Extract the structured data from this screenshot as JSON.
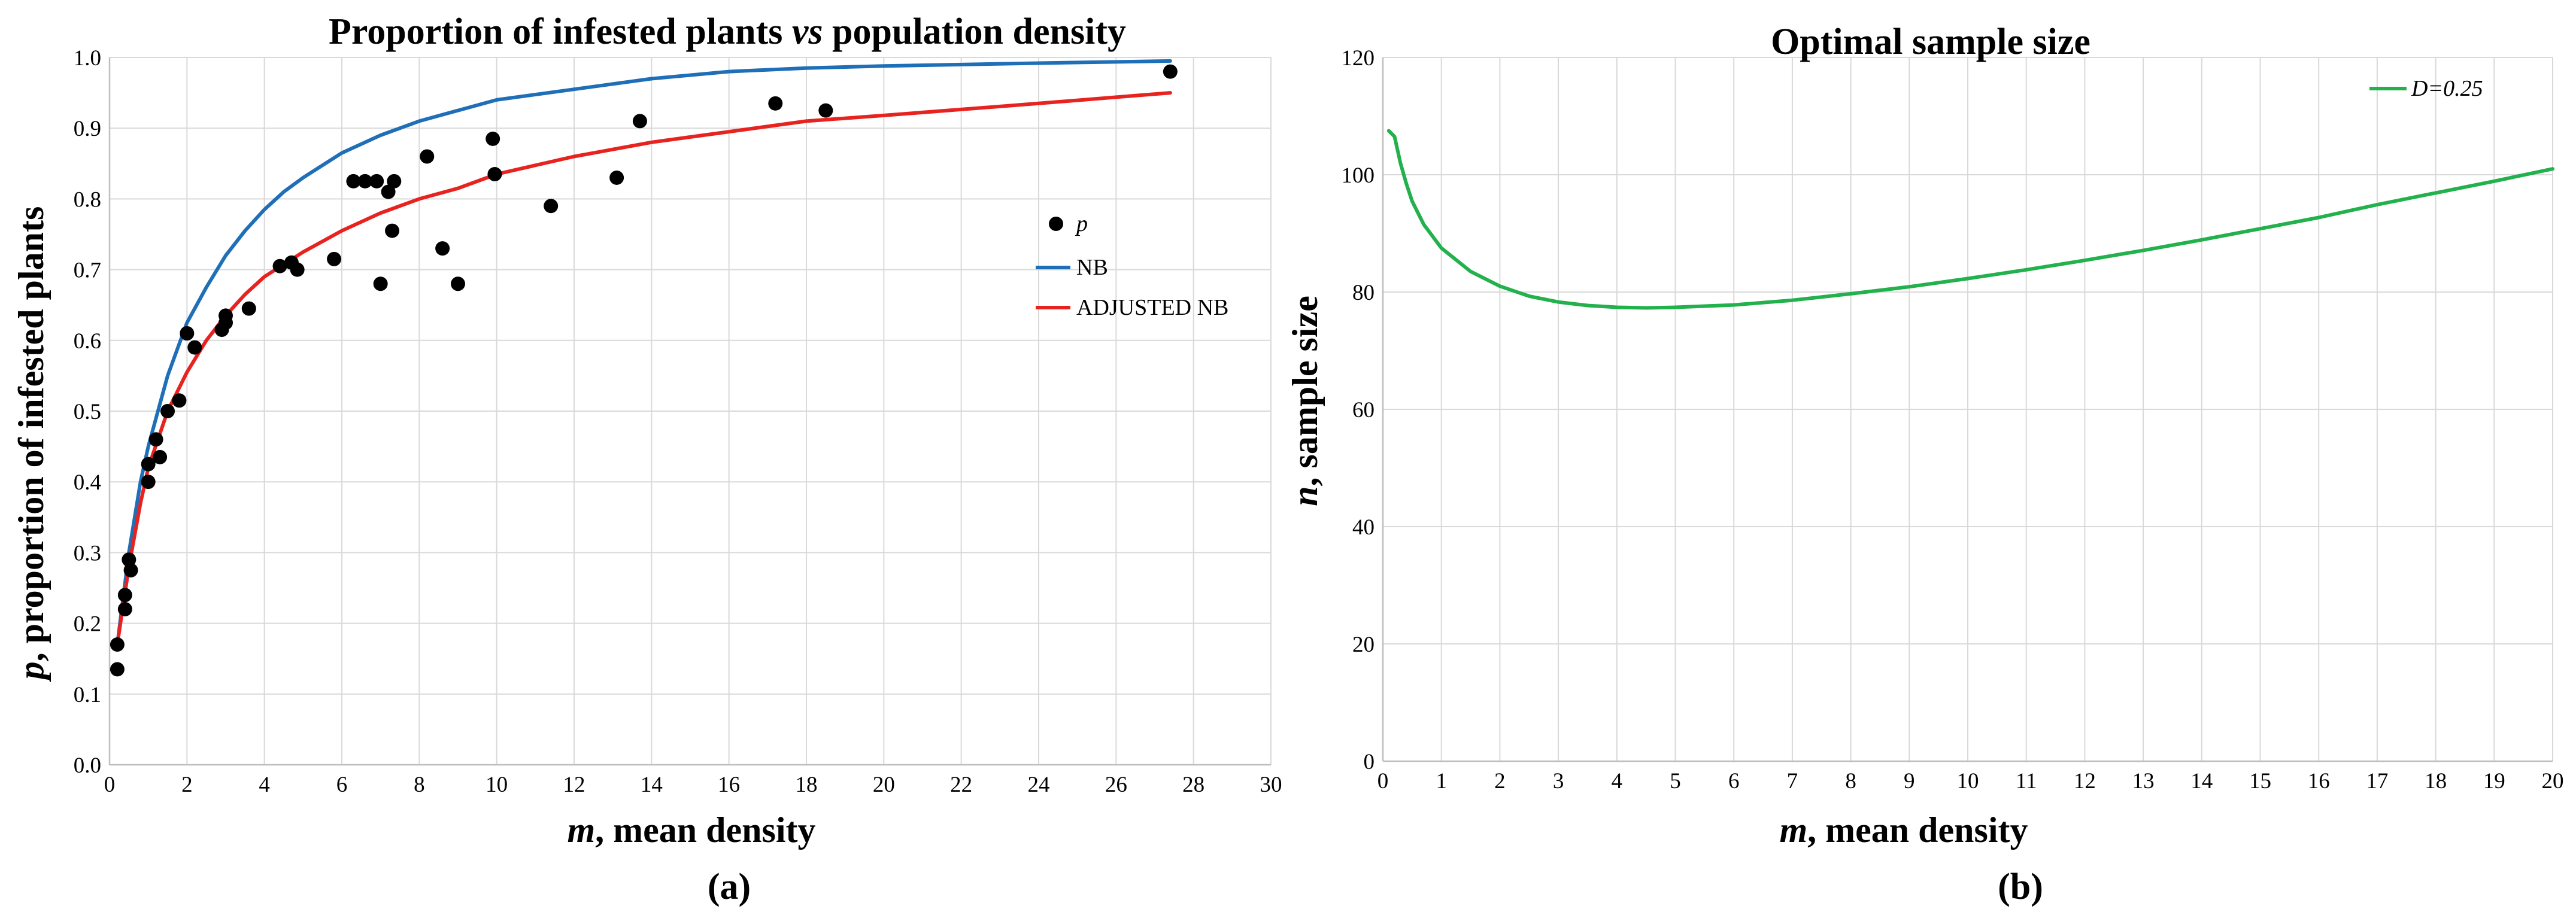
{
  "chart_data": [
    {
      "type": "scatter",
      "panel_label": "(a)",
      "title_parts": [
        "Proportion of infested plants ",
        "vs",
        " population density"
      ],
      "xlabel_parts": [
        "m",
        ", mean density"
      ],
      "ylabel_parts": [
        "p",
        ", proportion of infested plants"
      ],
      "xlim": [
        0,
        30
      ],
      "ylim": [
        0.0,
        1.0
      ],
      "x_ticks": [
        0,
        2,
        4,
        6,
        8,
        10,
        12,
        14,
        16,
        18,
        20,
        22,
        24,
        26,
        28,
        30
      ],
      "y_ticks": [
        "0.0",
        "0.1",
        "0.2",
        "0.3",
        "0.4",
        "0.5",
        "0.6",
        "0.7",
        "0.8",
        "0.9",
        "1.0"
      ],
      "grid": true,
      "legend_position": "right",
      "series": [
        {
          "name": "p",
          "kind": "points",
          "color": "#000000",
          "points": [
            [
              0.2,
              0.135
            ],
            [
              0.2,
              0.17
            ],
            [
              0.4,
              0.24
            ],
            [
              0.4,
              0.22
            ],
            [
              0.5,
              0.29
            ],
            [
              0.55,
              0.275
            ],
            [
              1.0,
              0.425
            ],
            [
              1.0,
              0.4
            ],
            [
              1.2,
              0.46
            ],
            [
              1.3,
              0.435
            ],
            [
              1.5,
              0.5
            ],
            [
              1.8,
              0.515
            ],
            [
              2.0,
              0.61
            ],
            [
              2.2,
              0.59
            ],
            [
              2.9,
              0.615
            ],
            [
              3.0,
              0.635
            ],
            [
              3.0,
              0.625
            ],
            [
              3.6,
              0.645
            ],
            [
              4.4,
              0.705
            ],
            [
              4.7,
              0.71
            ],
            [
              4.85,
              0.7
            ],
            [
              5.8,
              0.715
            ],
            [
              6.3,
              0.825
            ],
            [
              6.6,
              0.825
            ],
            [
              6.9,
              0.825
            ],
            [
              7.0,
              0.68
            ],
            [
              7.2,
              0.81
            ],
            [
              7.3,
              0.755
            ],
            [
              7.35,
              0.825
            ],
            [
              8.2,
              0.86
            ],
            [
              8.6,
              0.73
            ],
            [
              9.0,
              0.68
            ],
            [
              9.9,
              0.885
            ],
            [
              9.95,
              0.835
            ],
            [
              11.4,
              0.79
            ],
            [
              13.1,
              0.83
            ],
            [
              13.7,
              0.91
            ],
            [
              17.2,
              0.935
            ],
            [
              18.5,
              0.925
            ],
            [
              27.4,
              0.98
            ]
          ]
        },
        {
          "name": "NB",
          "kind": "line",
          "color": "#1f6fb8",
          "points": [
            [
              0.2,
              0.17
            ],
            [
              0.5,
              0.3
            ],
            [
              0.8,
              0.4
            ],
            [
              1.0,
              0.45
            ],
            [
              1.5,
              0.55
            ],
            [
              2.0,
              0.625
            ],
            [
              2.5,
              0.675
            ],
            [
              3.0,
              0.72
            ],
            [
              3.5,
              0.755
            ],
            [
              4.0,
              0.785
            ],
            [
              4.5,
              0.81
            ],
            [
              5.0,
              0.83
            ],
            [
              6.0,
              0.865
            ],
            [
              7.0,
              0.89
            ],
            [
              8.0,
              0.91
            ],
            [
              9.0,
              0.925
            ],
            [
              10.0,
              0.94
            ],
            [
              12.0,
              0.955
            ],
            [
              14.0,
              0.97
            ],
            [
              16.0,
              0.98
            ],
            [
              18.0,
              0.985
            ],
            [
              20.0,
              0.988
            ],
            [
              24.0,
              0.992
            ],
            [
              27.4,
              0.995
            ]
          ]
        },
        {
          "name": "ADJUSTED NB",
          "kind": "line",
          "color": "#e8231f",
          "points": [
            [
              0.2,
              0.17
            ],
            [
              0.5,
              0.28
            ],
            [
              0.8,
              0.37
            ],
            [
              1.0,
              0.42
            ],
            [
              1.5,
              0.5
            ],
            [
              2.0,
              0.555
            ],
            [
              2.5,
              0.6
            ],
            [
              3.0,
              0.635
            ],
            [
              3.5,
              0.665
            ],
            [
              4.0,
              0.69
            ],
            [
              5.0,
              0.725
            ],
            [
              6.0,
              0.755
            ],
            [
              7.0,
              0.78
            ],
            [
              8.0,
              0.8
            ],
            [
              9.0,
              0.815
            ],
            [
              10.0,
              0.835
            ],
            [
              12.0,
              0.86
            ],
            [
              14.0,
              0.88
            ],
            [
              16.0,
              0.895
            ],
            [
              18.0,
              0.91
            ],
            [
              20.0,
              0.918
            ],
            [
              24.0,
              0.935
            ],
            [
              27.4,
              0.95
            ]
          ]
        }
      ]
    },
    {
      "type": "line",
      "panel_label": "(b)",
      "title": "Optimal sample size",
      "xlabel_parts": [
        "m",
        ", mean density"
      ],
      "ylabel_parts": [
        "n",
        ", sample size"
      ],
      "xlim": [
        0,
        20
      ],
      "ylim": [
        0,
        120
      ],
      "x_ticks": [
        0,
        1,
        2,
        3,
        4,
        5,
        6,
        7,
        8,
        9,
        10,
        11,
        12,
        13,
        14,
        15,
        16,
        17,
        18,
        19,
        20
      ],
      "y_ticks": [
        0,
        20,
        40,
        60,
        80,
        100,
        120
      ],
      "grid": true,
      "legend_position": "top-right",
      "series": [
        {
          "name": "D=0.25",
          "color": "#22b14c",
          "points": [
            [
              0.1,
              107.5
            ],
            [
              0.2,
              106.5
            ],
            [
              0.3,
              102
            ],
            [
              0.4,
              98.5
            ],
            [
              0.5,
              95.5
            ],
            [
              0.7,
              91.5
            ],
            [
              1.0,
              87.5
            ],
            [
              1.5,
              83.5
            ],
            [
              2.0,
              81
            ],
            [
              2.5,
              79.3
            ],
            [
              3.0,
              78.3
            ],
            [
              3.5,
              77.7
            ],
            [
              4.0,
              77.4
            ],
            [
              4.5,
              77.3
            ],
            [
              5.0,
              77.4
            ],
            [
              6.0,
              77.8
            ],
            [
              7.0,
              78.6
            ],
            [
              8.0,
              79.7
            ],
            [
              9.0,
              80.9
            ],
            [
              10.0,
              82.3
            ],
            [
              11.0,
              83.8
            ],
            [
              12.0,
              85.4
            ],
            [
              13.0,
              87.1
            ],
            [
              14.0,
              88.9
            ],
            [
              15.0,
              90.8
            ],
            [
              16.0,
              92.7
            ],
            [
              17.0,
              94.9
            ],
            [
              18.0,
              96.9
            ],
            [
              19.0,
              98.9
            ],
            [
              20.0,
              101
            ]
          ]
        }
      ]
    }
  ]
}
